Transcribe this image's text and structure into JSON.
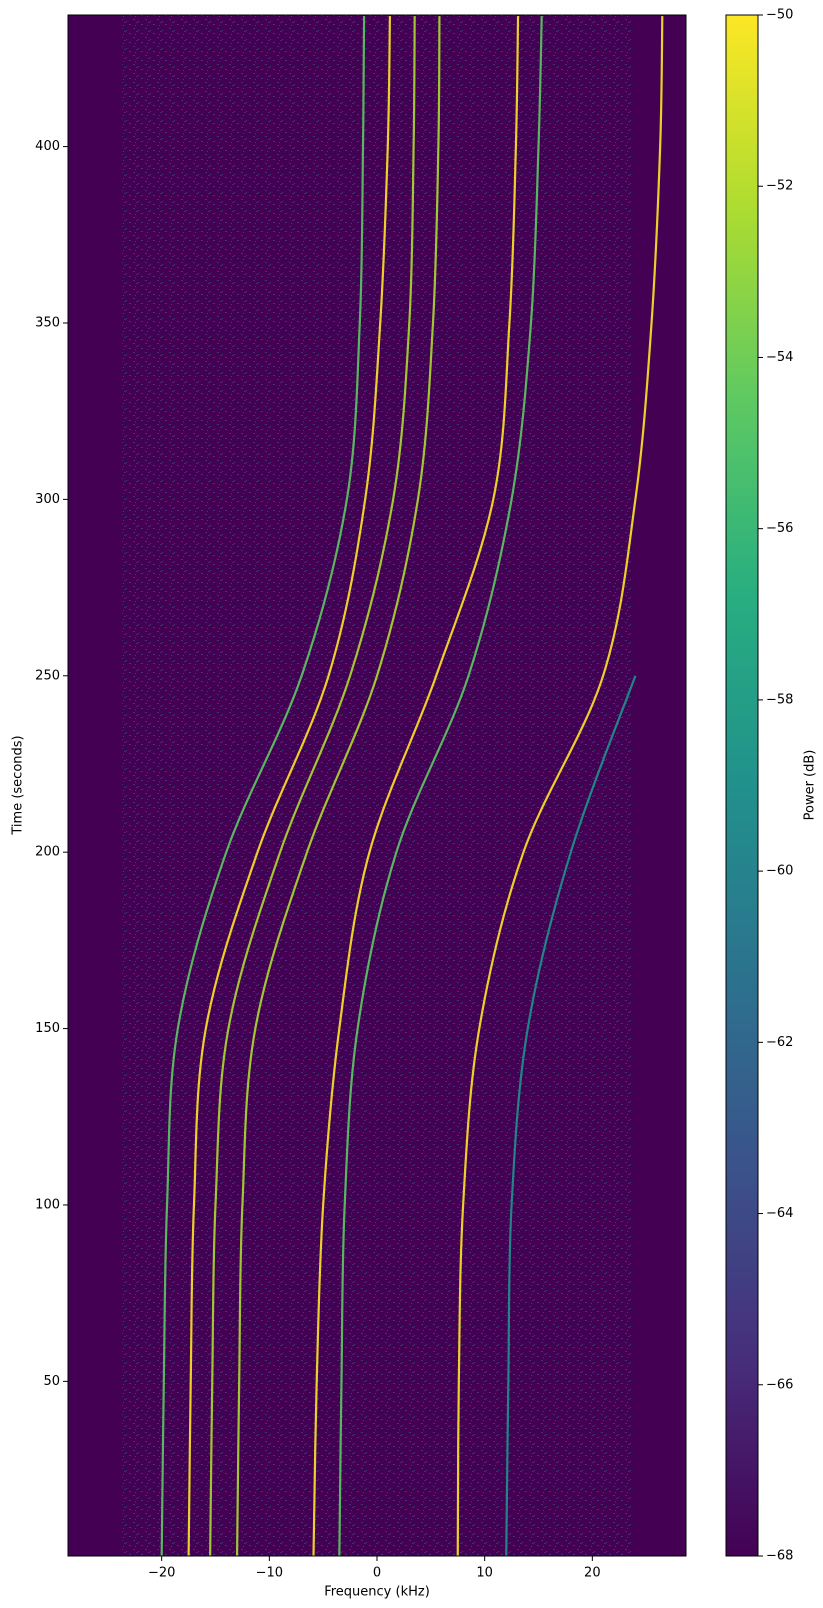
{
  "chart_data": {
    "type": "spectrogram",
    "xlabel": "Frequency (kHz)",
    "ylabel": "Time (seconds)",
    "xlim": [
      -28.7,
      28.7
    ],
    "xticks": [
      {
        "value": -20,
        "label": "−20"
      },
      {
        "value": -10,
        "label": "−10"
      },
      0,
      10,
      20
    ],
    "ylim": [
      0.5,
      437.3
    ],
    "yticks": [
      50,
      100,
      150,
      200,
      250,
      300,
      350,
      400
    ],
    "y": [
      0,
      50,
      100,
      150,
      200,
      250,
      300,
      350,
      400,
      437
    ],
    "series": [
      {
        "color": "#fde725",
        "x": [
          -17.5,
          -17.3,
          -17,
          -15.9,
          -11.1,
          -4.5,
          -1.1,
          0.3,
          1,
          1.2
        ]
      },
      {
        "color": "#5ec962",
        "x": [
          -20,
          -19.8,
          -19.5,
          -18.5,
          -14,
          -7,
          -2.8,
          -1.6,
          -1.3,
          -1.2
        ]
      },
      {
        "color": "#addc30",
        "x": [
          -15.5,
          -15.3,
          -15,
          -13.8,
          -9,
          -2.5,
          1.5,
          3,
          3.4,
          3.5
        ]
      },
      {
        "color": "#addc30",
        "x": [
          -13,
          -12.8,
          -12.5,
          -11.3,
          -6.5,
          0,
          3.8,
          5.2,
          5.7,
          5.8
        ]
      },
      {
        "color": "#fde725",
        "x": [
          -5.9,
          -5.6,
          -5,
          -3.5,
          -0.7,
          5.5,
          10.8,
          12.3,
          12.9,
          13.1
        ]
      },
      {
        "color": "#5ec962",
        "x": [
          -3.5,
          -3.3,
          -3,
          -1.8,
          1.8,
          8.5,
          12.5,
          14.3,
          15,
          15.3
        ]
      },
      {
        "color": "#fde725",
        "x": [
          7.5,
          7.6,
          8,
          9.5,
          13.6,
          21,
          24,
          25.5,
          26.3,
          26.5
        ]
      },
      {
        "color": "#21918c",
        "x": [
          12,
          12.2,
          12.5,
          14,
          18,
          24,
          null,
          null,
          null,
          null
        ]
      }
    ],
    "colorbar_label": "Power (dB)",
    "clim": [
      -68,
      -50
    ],
    "cticks": [
      {
        "value": -68,
        "label": "−68"
      },
      {
        "value": -66,
        "label": "−66"
      },
      {
        "value": -64,
        "label": "−64"
      },
      {
        "value": -62,
        "label": "−62"
      },
      {
        "value": -60,
        "label": "−60"
      },
      {
        "value": -58,
        "label": "−58"
      },
      {
        "value": -56,
        "label": "−56"
      },
      {
        "value": -54,
        "label": "−54"
      },
      {
        "value": -52,
        "label": "−52"
      },
      {
        "value": -50,
        "label": "−50"
      }
    ]
  }
}
